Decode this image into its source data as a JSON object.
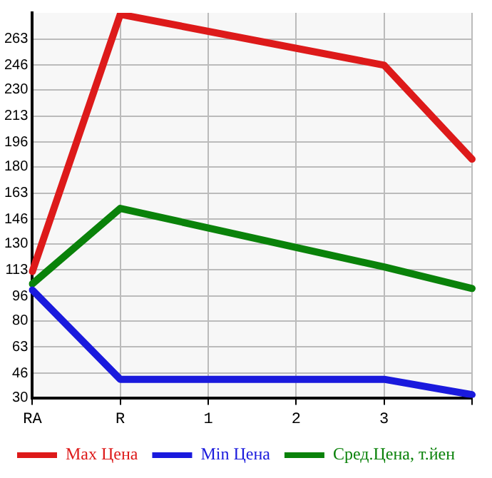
{
  "chart_data": {
    "type": "line",
    "categories": [
      "RA",
      "R",
      "1",
      "2",
      "3",
      null
    ],
    "series": [
      {
        "name": "Max Цена",
        "color": "#dd1a1a",
        "values": [
          112,
          279,
          null,
          null,
          246,
          185
        ]
      },
      {
        "name": "Min Цена",
        "color": "#1a1add",
        "values": [
          100,
          42,
          null,
          null,
          42,
          32
        ]
      },
      {
        "name": "Сред.Цена, т.йен",
        "color": "#0a820a",
        "values": [
          104,
          153,
          null,
          null,
          115,
          101
        ]
      }
    ],
    "ylim": [
      30,
      280
    ],
    "yticks": [
      30,
      46,
      63,
      80,
      96,
      113,
      130,
      146,
      163,
      180,
      196,
      213,
      230,
      246,
      263
    ],
    "grid": true,
    "legend": "bottom",
    "marker": "none",
    "line_style": "solid"
  }
}
